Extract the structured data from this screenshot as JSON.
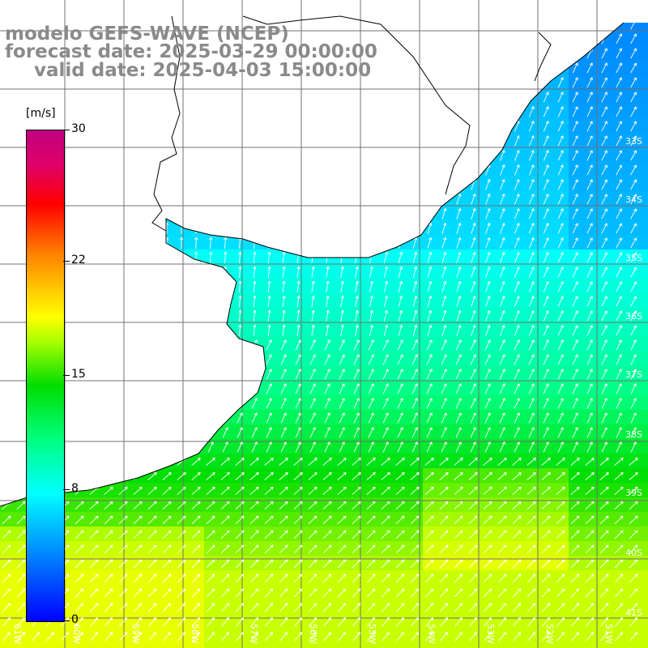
{
  "title": {
    "line1": "modelo GEFS-WAVE (NCEP)",
    "line2": "forecast date: 2025-03-29 00:00:00",
    "line3": "valid date: 2025-04-03 15:00:00"
  },
  "colorbar": {
    "unit": "[m/s]",
    "min": 0,
    "max": 30,
    "ticks": [
      {
        "value": 30,
        "label": "30"
      },
      {
        "value": 22,
        "label": "22"
      },
      {
        "value": 15,
        "label": "15"
      },
      {
        "value": 8,
        "label": "8"
      },
      {
        "value": 0,
        "label": "0"
      }
    ]
  },
  "lat_labels": [
    "33S",
    "34S",
    "35S",
    "36S",
    "37S",
    "38S",
    "39S",
    "40S",
    "41S"
  ],
  "lon_labels": [
    "61W",
    "60W",
    "59W",
    "58W",
    "57W",
    "56W",
    "55W",
    "54W",
    "53W",
    "52W",
    "51W"
  ],
  "colors": {
    "land": "#ffffff",
    "grid": "#707070",
    "coast": "#000000",
    "arrows": "#ffffff"
  }
}
